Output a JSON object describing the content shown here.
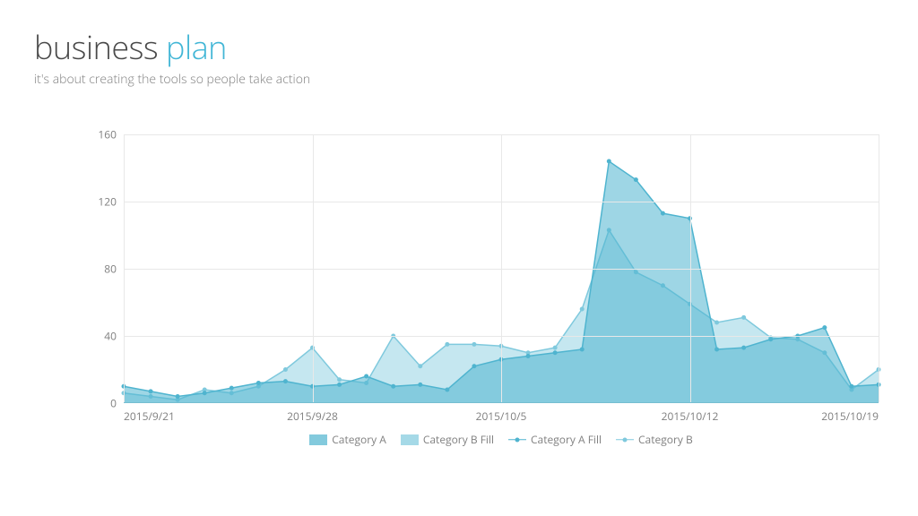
{
  "header": {
    "title_part1": "business ",
    "title_part2": "plan",
    "subtitle": "it's about creating the tools so people take action",
    "title_color_dark": "#4a4a4a",
    "title_color_accent": "#42b6d6",
    "title_fontsize": 36,
    "subtitle_fontsize": 14,
    "subtitle_color": "#808080"
  },
  "chart": {
    "type": "area-line",
    "background": "#ffffff",
    "grid_color": "#e8e8e8",
    "axis_color": "#c8c8c8",
    "tick_label_color": "#808080",
    "tick_fontsize": 12,
    "ymin": 0,
    "ymax": 160,
    "ytick_step": 40,
    "y_ticks": [
      0,
      40,
      80,
      120,
      160
    ],
    "x_count": 29,
    "x_label_indices": [
      0,
      7,
      14,
      21,
      28
    ],
    "x_labels": [
      "2015/9/21",
      "2015/9/28",
      "2015/10/5",
      "2015/10/12",
      "2015/10/19"
    ],
    "series_a": {
      "name": "Category A",
      "fill_name": "Category A Fill",
      "fill_color": "#4fb4cf",
      "fill_opacity": 0.55,
      "line_color": "#4fb4cf",
      "marker_color": "#4fb4cf",
      "line_width": 1.5,
      "marker_radius": 2.5,
      "values": [
        10,
        7,
        4,
        6,
        9,
        12,
        13,
        10,
        11,
        16,
        10,
        11,
        8,
        22,
        26,
        28,
        30,
        32,
        144,
        133,
        113,
        110,
        32,
        33,
        38,
        40,
        45,
        10,
        11
      ]
    },
    "series_b": {
      "name": "Category B",
      "fill_name": "Category B Fill",
      "fill_color": "#7fc9dd",
      "fill_opacity": 0.45,
      "line_color": "#7fc9dd",
      "marker_color": "#7fc9dd",
      "line_width": 1.5,
      "marker_radius": 2.5,
      "values": [
        6,
        4,
        2,
        8,
        6,
        10,
        20,
        33,
        14,
        12,
        40,
        22,
        35,
        35,
        34,
        30,
        33,
        56,
        103,
        78,
        70,
        59,
        48,
        51,
        39,
        38,
        30,
        8,
        20
      ]
    },
    "legend": {
      "items": [
        {
          "type": "fill",
          "label": "Category A",
          "color": "#4fb4cf",
          "opacity": 0.7
        },
        {
          "type": "fill",
          "label": "Category B Fill",
          "color": "#7fc9dd",
          "opacity": 0.7
        },
        {
          "type": "line",
          "label": "Category A Fill",
          "color": "#4fb4cf"
        },
        {
          "type": "line",
          "label": "Category B",
          "color": "#7fc9dd"
        }
      ]
    }
  }
}
